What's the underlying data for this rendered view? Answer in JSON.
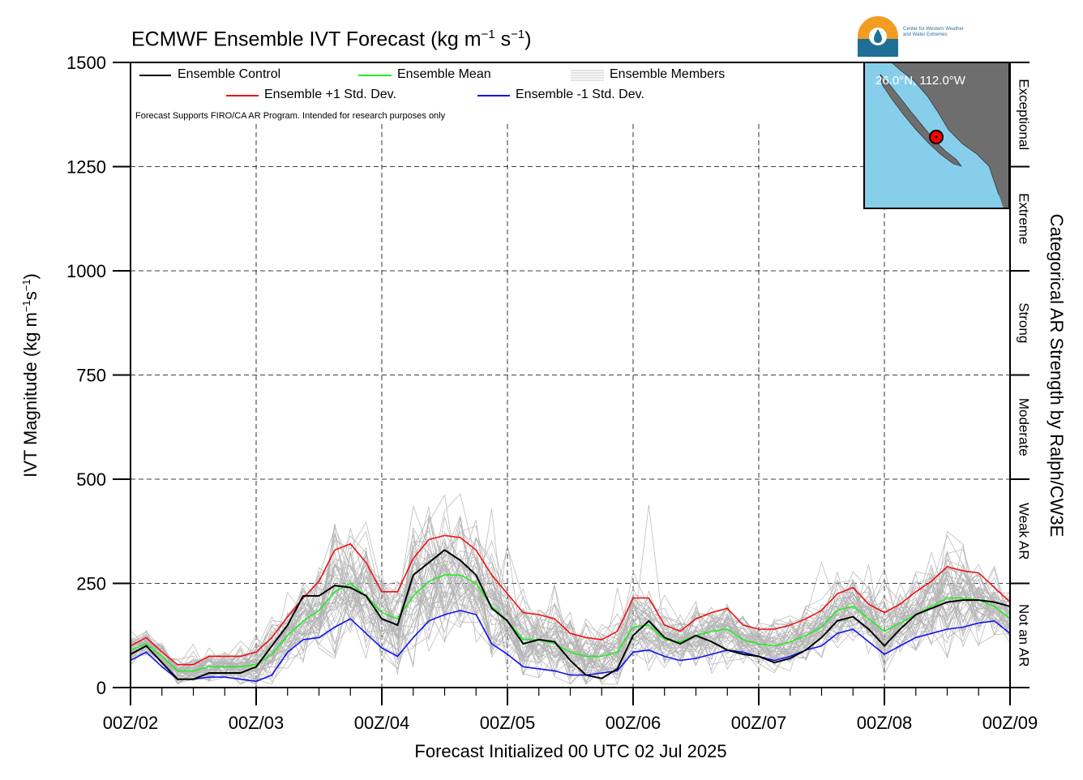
{
  "title": "ECMWF Ensemble IVT Forecast (kg m",
  "title_parts": {
    "exp1": "−1",
    "mid": " s",
    "exp2": "−1",
    "end": ")"
  },
  "logo": {
    "line1": "Center for Western Weather",
    "line2": "and Water Extremes"
  },
  "fine_print": "Forecast Supports FIRO/CA AR Program. Intended for research purposes only",
  "colors": {
    "control": "#000000",
    "mean": "#22ee22",
    "plus": "#ee1111",
    "minus": "#1111ee",
    "members": "#b4b4b4",
    "ocean": "#87ceeb",
    "land": "#6e6e6e",
    "marker": "#ff0000"
  },
  "map": {
    "label": "26.0°N, 112.0°W"
  },
  "chart_data": {
    "type": "line",
    "xlabel": "Forecast Initialized 00 UTC 02 Jul 2025",
    "ylabel": "IVT Magnitude (kg m",
    "ylabel_parts": {
      "exp1": "−1",
      "mid": "s",
      "exp2": "−1",
      "end": ")"
    },
    "right_label": "Categorical AR Strength by Ralph/CW3E",
    "ylim": [
      0,
      1500
    ],
    "xlim": [
      0,
      168
    ],
    "yticks": [
      0,
      250,
      500,
      750,
      1000,
      1250,
      1500
    ],
    "xticks": [
      {
        "value": 0,
        "label": "00Z/02"
      },
      {
        "value": 24,
        "label": "00Z/03"
      },
      {
        "value": 48,
        "label": "00Z/04"
      },
      {
        "value": 72,
        "label": "00Z/05"
      },
      {
        "value": 96,
        "label": "00Z/06"
      },
      {
        "value": 120,
        "label": "00Z/07"
      },
      {
        "value": 144,
        "label": "00Z/08"
      },
      {
        "value": 168,
        "label": "00Z/09"
      }
    ],
    "categories": [
      {
        "label": "Not an AR",
        "min": 0,
        "max": 250
      },
      {
        "label": "Weak AR",
        "min": 250,
        "max": 500
      },
      {
        "label": "Moderate",
        "min": 500,
        "max": 750
      },
      {
        "label": "Strong",
        "min": 750,
        "max": 1000
      },
      {
        "label": "Extreme",
        "min": 1000,
        "max": 1250
      },
      {
        "label": "Exceptional",
        "min": 1250,
        "max": 1500
      }
    ],
    "x": [
      0,
      3,
      6,
      9,
      12,
      15,
      18,
      21,
      24,
      27,
      30,
      33,
      36,
      39,
      42,
      45,
      48,
      51,
      54,
      57,
      60,
      63,
      66,
      69,
      72,
      75,
      78,
      81,
      84,
      87,
      90,
      93,
      96,
      99,
      102,
      105,
      108,
      111,
      114,
      117,
      120,
      123,
      126,
      129,
      132,
      135,
      138,
      141,
      144,
      147,
      150,
      153,
      156,
      159,
      162,
      165,
      168
    ],
    "series": [
      {
        "name": "Ensemble Control",
        "role": "control",
        "values": [
          80,
          100,
          60,
          20,
          20,
          35,
          35,
          35,
          50,
          100,
          150,
          220,
          220,
          245,
          240,
          220,
          165,
          150,
          270,
          300,
          330,
          305,
          270,
          190,
          160,
          105,
          115,
          110,
          65,
          30,
          22,
          45,
          125,
          160,
          120,
          105,
          125,
          110,
          90,
          80,
          75,
          60,
          70,
          90,
          120,
          160,
          170,
          140,
          100,
          140,
          175,
          190,
          205,
          210,
          210,
          205,
          195
        ]
      },
      {
        "name": "Ensemble Mean",
        "role": "mean",
        "values": [
          90,
          105,
          75,
          40,
          40,
          50,
          50,
          50,
          55,
          80,
          125,
          160,
          185,
          230,
          250,
          220,
          180,
          165,
          220,
          255,
          270,
          270,
          250,
          195,
          160,
          115,
          115,
          105,
          85,
          75,
          75,
          85,
          145,
          150,
          115,
          110,
          125,
          135,
          140,
          115,
          105,
          100,
          110,
          125,
          145,
          185,
          195,
          165,
          135,
          155,
          175,
          195,
          215,
          215,
          210,
          195,
          165
        ]
      },
      {
        "name": "Ensemble +1 Std. Dev.",
        "role": "plus",
        "values": [
          100,
          120,
          85,
          55,
          55,
          75,
          75,
          75,
          85,
          120,
          170,
          215,
          255,
          330,
          345,
          300,
          230,
          230,
          310,
          355,
          365,
          360,
          330,
          270,
          225,
          180,
          175,
          165,
          130,
          120,
          115,
          135,
          215,
          215,
          150,
          135,
          165,
          180,
          190,
          150,
          140,
          140,
          150,
          165,
          185,
          225,
          240,
          200,
          180,
          200,
          230,
          255,
          290,
          280,
          275,
          240,
          205
        ]
      },
      {
        "name": "Ensemble -1 Std. Dev.",
        "role": "minus",
        "values": [
          65,
          85,
          50,
          20,
          20,
          25,
          25,
          20,
          15,
          30,
          85,
          115,
          120,
          145,
          165,
          130,
          95,
          75,
          120,
          160,
          175,
          185,
          175,
          105,
          80,
          50,
          45,
          40,
          30,
          30,
          35,
          40,
          85,
          90,
          75,
          65,
          70,
          80,
          90,
          85,
          75,
          65,
          75,
          90,
          100,
          130,
          140,
          110,
          80,
          100,
          120,
          130,
          140,
          145,
          155,
          160,
          130
        ]
      }
    ],
    "legend": [
      {
        "name": "Ensemble Control",
        "role": "control"
      },
      {
        "name": "Ensemble Mean",
        "role": "mean"
      },
      {
        "name": "Ensemble Members",
        "role": "members"
      },
      {
        "name": "Ensemble +1 Std. Dev.",
        "role": "plus"
      },
      {
        "name": "Ensemble -1 Std. Dev.",
        "role": "minus"
      }
    ],
    "members": {
      "count": 50,
      "spread_note": "gray lines bounded roughly by +/- envelope with a few outliers up to ~600"
    }
  }
}
